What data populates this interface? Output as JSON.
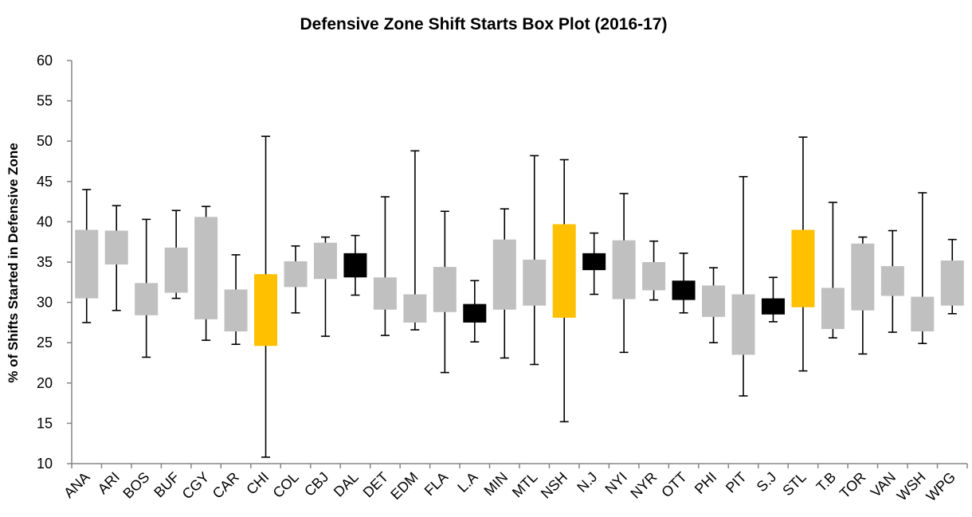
{
  "chart_data": {
    "type": "box",
    "title": "Defensive Zone Shift Starts Box Plot (2016-17)",
    "xlabel": "",
    "ylabel": "% of Shifts Started in Defensive Zone",
    "ylim": [
      10,
      60
    ],
    "yticks": [
      "10",
      "15",
      "20",
      "25",
      "30",
      "35",
      "40",
      "45",
      "50",
      "55",
      "60"
    ],
    "grid": false,
    "legend": "none",
    "colors": {
      "default": "#c0c0c0",
      "highlight_gold": "#ffc000",
      "highlight_black": "#000000"
    },
    "categories": [
      {
        "team": "ANA",
        "min": 27.5,
        "q1": 30.5,
        "q3": 39.0,
        "max": 44.0,
        "color": "default"
      },
      {
        "team": "ARI",
        "min": 29.0,
        "q1": 34.7,
        "q3": 38.9,
        "max": 42.0,
        "color": "default"
      },
      {
        "team": "BOS",
        "min": 23.2,
        "q1": 28.4,
        "q3": 32.4,
        "max": 40.3,
        "color": "default"
      },
      {
        "team": "BUF",
        "min": 30.5,
        "q1": 31.2,
        "q3": 36.8,
        "max": 41.4,
        "color": "default"
      },
      {
        "team": "CGY",
        "min": 25.3,
        "q1": 27.9,
        "q3": 40.6,
        "max": 41.9,
        "color": "default"
      },
      {
        "team": "CAR",
        "min": 24.8,
        "q1": 26.4,
        "q3": 31.6,
        "max": 35.9,
        "color": "default"
      },
      {
        "team": "CHI",
        "min": 10.8,
        "q1": 24.6,
        "q3": 33.5,
        "max": 50.6,
        "color": "highlight_gold"
      },
      {
        "team": "COL",
        "min": 28.7,
        "q1": 31.9,
        "q3": 35.1,
        "max": 37.0,
        "color": "default"
      },
      {
        "team": "CBJ",
        "min": 25.8,
        "q1": 32.9,
        "q3": 37.4,
        "max": 38.1,
        "color": "default"
      },
      {
        "team": "DAL",
        "min": 30.9,
        "q1": 33.1,
        "q3": 36.1,
        "max": 38.3,
        "color": "highlight_black"
      },
      {
        "team": "DET",
        "min": 25.9,
        "q1": 29.1,
        "q3": 33.1,
        "max": 43.1,
        "color": "default"
      },
      {
        "team": "EDM",
        "min": 26.6,
        "q1": 27.5,
        "q3": 31.0,
        "max": 48.8,
        "color": "default"
      },
      {
        "team": "FLA",
        "min": 21.3,
        "q1": 28.8,
        "q3": 34.4,
        "max": 41.3,
        "color": "default"
      },
      {
        "team": "L.A",
        "min": 25.1,
        "q1": 27.5,
        "q3": 29.8,
        "max": 32.7,
        "color": "highlight_black"
      },
      {
        "team": "MIN",
        "min": 23.1,
        "q1": 29.1,
        "q3": 37.8,
        "max": 41.6,
        "color": "default"
      },
      {
        "team": "MTL",
        "min": 22.3,
        "q1": 29.6,
        "q3": 35.3,
        "max": 48.2,
        "color": "default"
      },
      {
        "team": "NSH",
        "min": 15.2,
        "q1": 28.1,
        "q3": 39.7,
        "max": 47.7,
        "color": "highlight_gold"
      },
      {
        "team": "N.J",
        "min": 31.0,
        "q1": 34.0,
        "q3": 36.1,
        "max": 38.6,
        "color": "highlight_black"
      },
      {
        "team": "NYI",
        "min": 23.8,
        "q1": 30.4,
        "q3": 37.7,
        "max": 43.5,
        "color": "default"
      },
      {
        "team": "NYR",
        "min": 30.3,
        "q1": 31.5,
        "q3": 35.0,
        "max": 37.6,
        "color": "default"
      },
      {
        "team": "OTT",
        "min": 28.7,
        "q1": 30.3,
        "q3": 32.7,
        "max": 36.1,
        "color": "highlight_black"
      },
      {
        "team": "PHI",
        "min": 25.0,
        "q1": 28.2,
        "q3": 32.1,
        "max": 34.3,
        "color": "default"
      },
      {
        "team": "PIT",
        "min": 18.4,
        "q1": 23.5,
        "q3": 31.0,
        "max": 45.6,
        "color": "default"
      },
      {
        "team": "S.J",
        "min": 27.6,
        "q1": 28.5,
        "q3": 30.5,
        "max": 33.1,
        "color": "highlight_black"
      },
      {
        "team": "STL",
        "min": 21.5,
        "q1": 29.4,
        "q3": 39.0,
        "max": 50.5,
        "color": "highlight_gold"
      },
      {
        "team": "T.B",
        "min": 25.6,
        "q1": 26.7,
        "q3": 31.8,
        "max": 42.4,
        "color": "default"
      },
      {
        "team": "TOR",
        "min": 23.6,
        "q1": 29.0,
        "q3": 37.3,
        "max": 38.1,
        "color": "default"
      },
      {
        "team": "VAN",
        "min": 26.3,
        "q1": 30.8,
        "q3": 34.5,
        "max": 38.9,
        "color": "default"
      },
      {
        "team": "WSH",
        "min": 24.9,
        "q1": 26.4,
        "q3": 30.7,
        "max": 43.6,
        "color": "default"
      },
      {
        "team": "WPG",
        "min": 28.6,
        "q1": 29.6,
        "q3": 35.2,
        "max": 37.8,
        "color": "default"
      }
    ]
  }
}
